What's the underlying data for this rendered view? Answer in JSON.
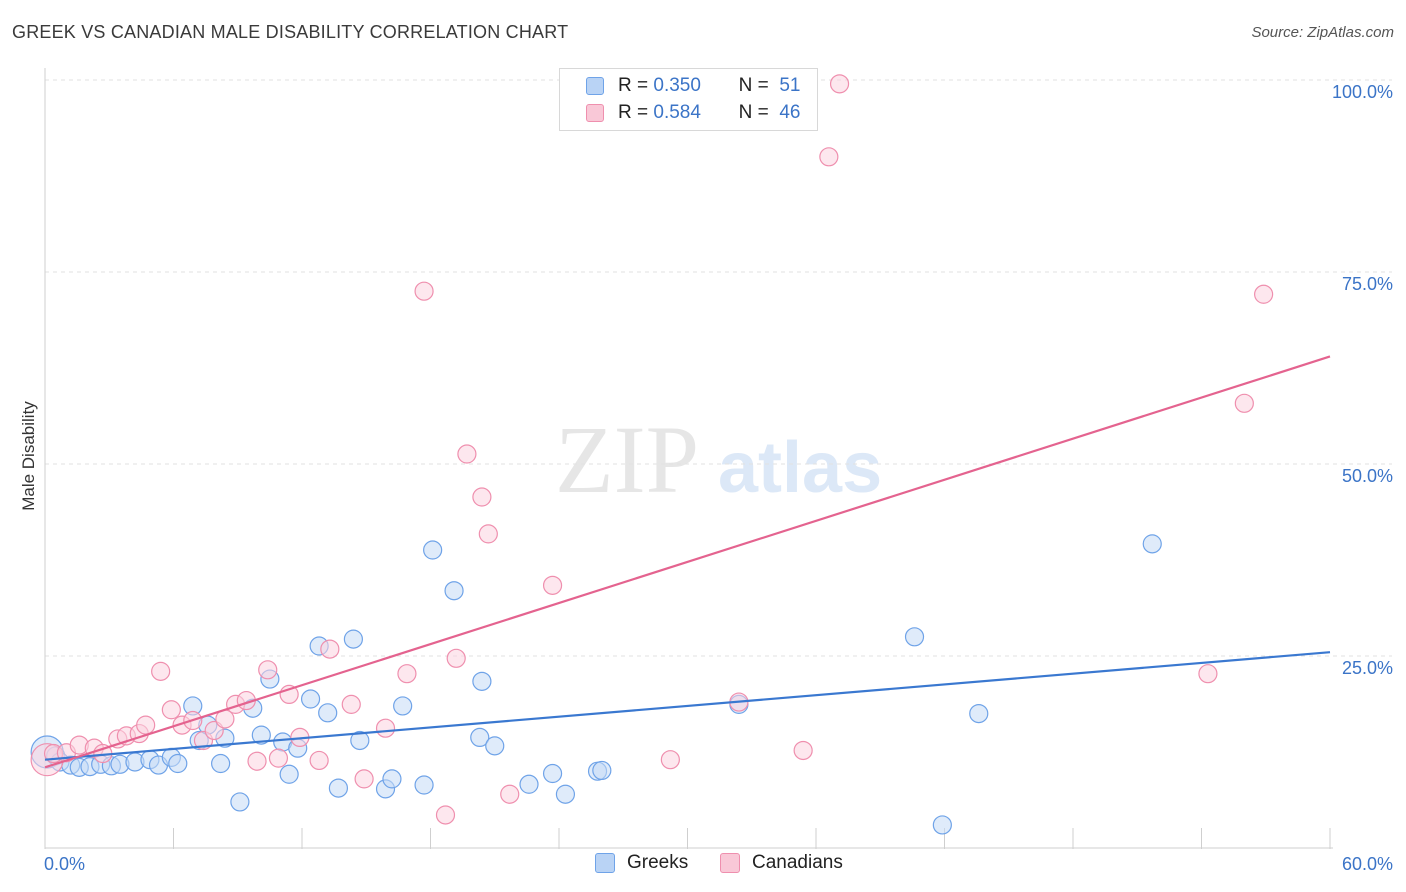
{
  "title": "GREEK VS CANADIAN MALE DISABILITY CORRELATION CHART",
  "source": "Source: ZipAtlas.com",
  "watermark": {
    "zip": "ZIP",
    "atlas": "atlas"
  },
  "legend": {
    "greeks": {
      "r_label": "R =",
      "r_value": "0.350",
      "n_label": "N =",
      "n_value": "51",
      "color": "#6fa3e8",
      "fill": "#b9d3f5"
    },
    "canadians": {
      "r_label": "R =",
      "r_value": "0.584",
      "n_label": "N =",
      "n_value": "46",
      "color": "#ef8fae",
      "fill": "#f9c8d7"
    }
  },
  "bottom_legend": {
    "greeks": "Greeks",
    "canadians": "Canadians"
  },
  "chart_data": {
    "type": "scatter",
    "title": "GREEK VS CANADIAN MALE DISABILITY CORRELATION CHART",
    "xlabel": "",
    "ylabel": "Male Disability",
    "xlim": [
      0,
      60
    ],
    "ylim": [
      0,
      100
    ],
    "x_tick_labels": {
      "min": "0.0%",
      "max": "60.0%"
    },
    "y_ticks": [
      {
        "value": 25,
        "label": "25.0%"
      },
      {
        "value": 50,
        "label": "50.0%"
      },
      {
        "value": 75,
        "label": "75.0%"
      },
      {
        "value": 100,
        "label": "100.0%"
      }
    ],
    "grid": true,
    "series": [
      {
        "name": "Greeks",
        "color": "#3a78d0",
        "point_color": "#6fa3e8",
        "point_fill": "#c5dbf6",
        "trend": {
          "x0": 0,
          "y0": 11.5,
          "x1": 60,
          "y1": 25.5
        },
        "points": [
          [
            0.1,
            12.5
          ],
          [
            0.5,
            12
          ],
          [
            0.7,
            11.2
          ],
          [
            1.2,
            10.8
          ],
          [
            1.6,
            10.5
          ],
          [
            2.1,
            10.6
          ],
          [
            2.6,
            10.9
          ],
          [
            3.1,
            10.7
          ],
          [
            3.5,
            10.9
          ],
          [
            4.2,
            11.2
          ],
          [
            4.9,
            11.5
          ],
          [
            5.3,
            10.8
          ],
          [
            5.9,
            11.8
          ],
          [
            6.2,
            11.0
          ],
          [
            6.9,
            18.5
          ],
          [
            7.2,
            14.0
          ],
          [
            7.6,
            16.0
          ],
          [
            8.2,
            11.0
          ],
          [
            8.4,
            14.3
          ],
          [
            9.1,
            6.0
          ],
          [
            9.7,
            18.2
          ],
          [
            10.1,
            14.7
          ],
          [
            10.5,
            22.0
          ],
          [
            11.1,
            13.8
          ],
          [
            11.4,
            9.6
          ],
          [
            11.8,
            13.0
          ],
          [
            12.4,
            19.4
          ],
          [
            12.8,
            26.3
          ],
          [
            13.2,
            17.6
          ],
          [
            13.7,
            7.8
          ],
          [
            14.4,
            27.2
          ],
          [
            14.7,
            14.0
          ],
          [
            15.9,
            7.7
          ],
          [
            16.2,
            9.0
          ],
          [
            16.7,
            18.5
          ],
          [
            17.7,
            8.2
          ],
          [
            18.1,
            38.8
          ],
          [
            19.1,
            33.5
          ],
          [
            20.3,
            14.4
          ],
          [
            20.4,
            21.7
          ],
          [
            21.0,
            13.3
          ],
          [
            22.6,
            8.3
          ],
          [
            23.7,
            9.7
          ],
          [
            24.3,
            7.0
          ],
          [
            25.8,
            10.0
          ],
          [
            26.0,
            10.1
          ],
          [
            32.4,
            18.7
          ],
          [
            40.6,
            27.5
          ],
          [
            41.9,
            3.0
          ],
          [
            43.6,
            17.5
          ],
          [
            51.7,
            39.6
          ]
        ]
      },
      {
        "name": "Canadians",
        "color": "#e4638f",
        "point_color": "#ef8fae",
        "point_fill": "#fbd3e0",
        "trend": {
          "x0": 0,
          "y0": 10.5,
          "x1": 60,
          "y1": 64.0
        },
        "points": [
          [
            0.1,
            11.5
          ],
          [
            0.4,
            12.3
          ],
          [
            1.0,
            12.4
          ],
          [
            1.6,
            13.4
          ],
          [
            2.3,
            13.0
          ],
          [
            2.7,
            12.3
          ],
          [
            3.4,
            14.2
          ],
          [
            3.8,
            14.6
          ],
          [
            4.4,
            14.9
          ],
          [
            4.7,
            16.0
          ],
          [
            5.4,
            23.0
          ],
          [
            5.9,
            18.0
          ],
          [
            6.4,
            16.0
          ],
          [
            6.9,
            16.6
          ],
          [
            7.4,
            14.0
          ],
          [
            7.9,
            15.3
          ],
          [
            8.4,
            16.8
          ],
          [
            8.9,
            18.7
          ],
          [
            9.4,
            19.2
          ],
          [
            9.9,
            11.3
          ],
          [
            10.4,
            23.2
          ],
          [
            10.9,
            11.7
          ],
          [
            11.4,
            20.0
          ],
          [
            11.9,
            14.4
          ],
          [
            12.8,
            11.4
          ],
          [
            13.3,
            25.9
          ],
          [
            14.3,
            18.7
          ],
          [
            14.9,
            9.0
          ],
          [
            15.9,
            15.6
          ],
          [
            16.9,
            22.7
          ],
          [
            17.7,
            72.5
          ],
          [
            18.7,
            4.3
          ],
          [
            19.2,
            24.7
          ],
          [
            19.7,
            51.3
          ],
          [
            20.4,
            45.7
          ],
          [
            20.7,
            40.9
          ],
          [
            21.7,
            7.0
          ],
          [
            23.7,
            34.2
          ],
          [
            29.2,
            11.5
          ],
          [
            32.4,
            19.0
          ],
          [
            35.4,
            12.7
          ],
          [
            36.6,
            90.0
          ],
          [
            37.1,
            99.5
          ],
          [
            54.3,
            22.7
          ],
          [
            56.0,
            57.9
          ],
          [
            56.9,
            72.1
          ]
        ]
      }
    ]
  }
}
